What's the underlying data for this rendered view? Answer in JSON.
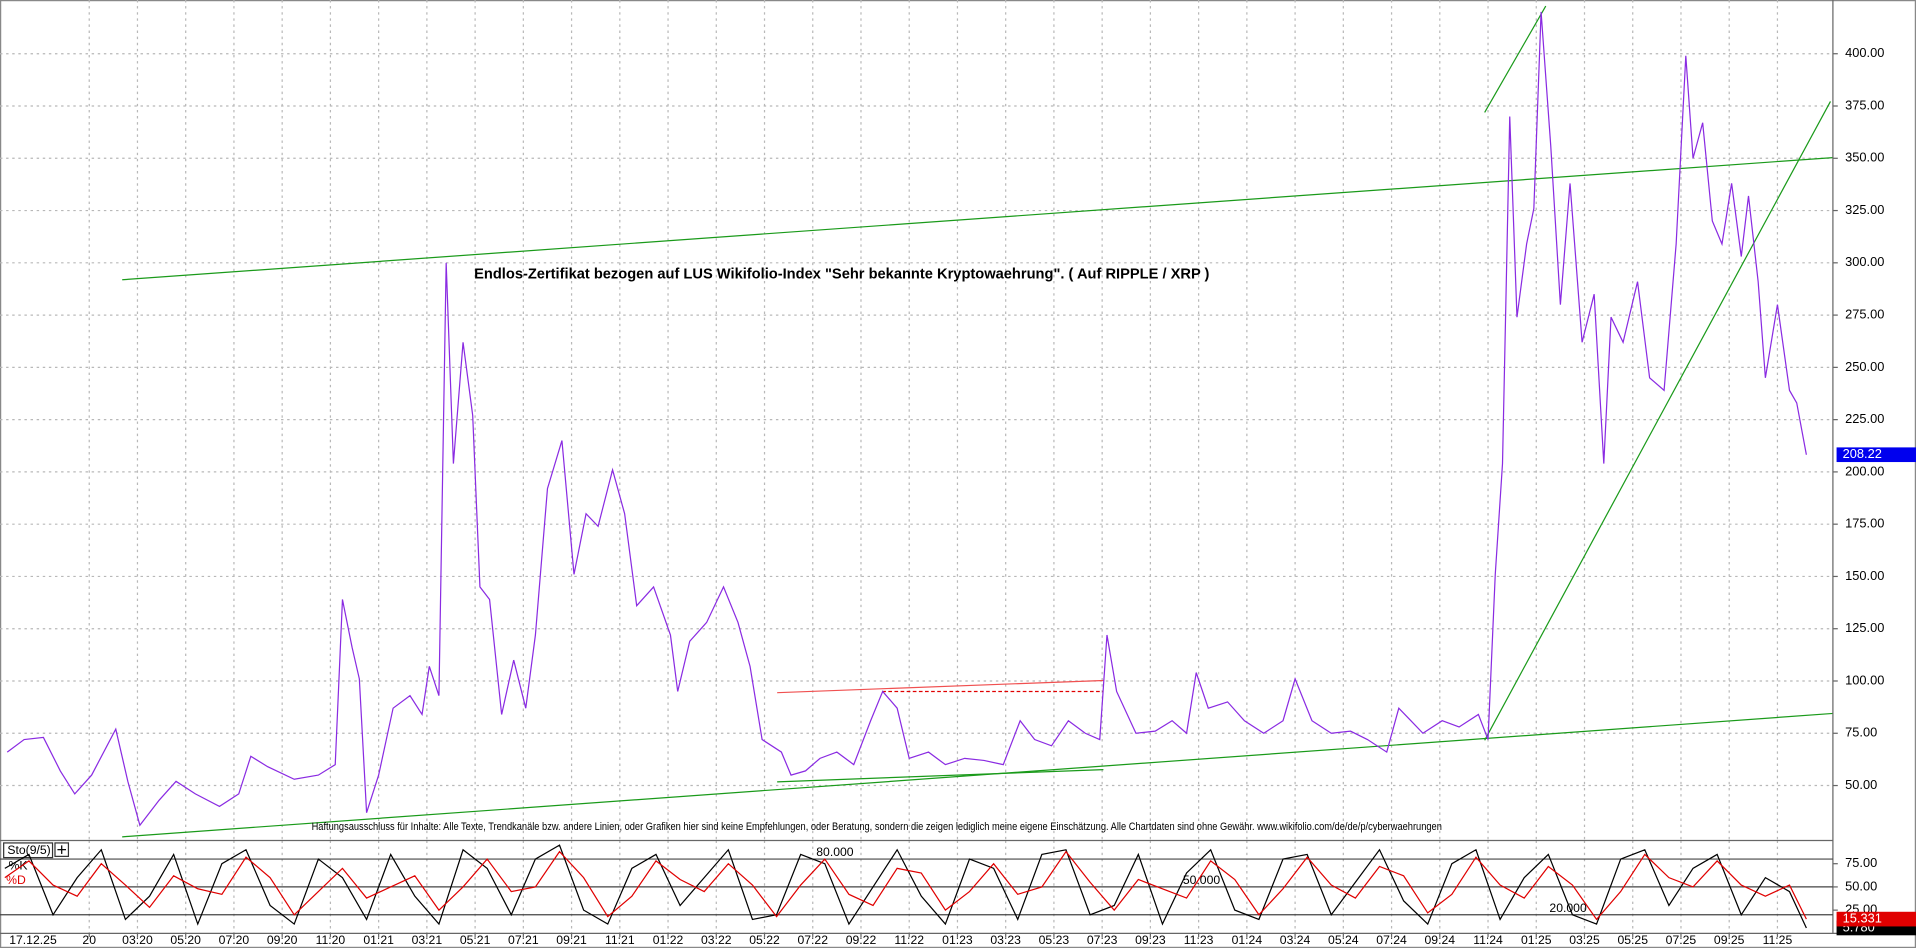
{
  "chart_data": [
    {
      "type": "line",
      "title": "Endlos-Zertifikat bezogen auf LUS Wikifolio-Index \"Sehr bekannte Kryptowaehrung\". ( Auf RIPPLE / XRP )",
      "annotation": "Haftungsausschluss für Inhalte: Alle Texte, Trendkanäle bzw. andere Linien, oder Grafiken hier sind keine Empfehlungen, oder Beratung, sondern die zeigen lediglich meine eigene Einschätzung. Alle Chartdaten sind ohne Gewähr.  www.wikifolio.com/de/de/p/cyberwaehrungen",
      "date_label": "17.12.25",
      "color": "#8a2be2",
      "grid": true,
      "x": [
        -3.4,
        -2.7,
        -1.9,
        -1.2,
        -0.6,
        0.1,
        1.1,
        1.6,
        2.1,
        2.9,
        3.6,
        4.4,
        5.4,
        6.2,
        6.7,
        7.4,
        8.5,
        9.5,
        10.2,
        10.5,
        10.9,
        11.2,
        11.5,
        12.0,
        12.6,
        13.3,
        13.8,
        14.1,
        14.5,
        14.8,
        15.1,
        15.5,
        15.9,
        16.2,
        16.6,
        17.1,
        17.6,
        18.1,
        18.5,
        19.0,
        19.6,
        20.1,
        20.6,
        21.1,
        21.7,
        22.2,
        22.7,
        23.4,
        24.1,
        24.4,
        24.9,
        25.6,
        26.3,
        26.9,
        27.4,
        27.9,
        28.7,
        29.1,
        29.7,
        30.3,
        31.0,
        31.7,
        32.4,
        32.9,
        33.5,
        34.0,
        34.8,
        35.5,
        36.3,
        37.1,
        37.9,
        38.6,
        39.2,
        39.9,
        40.6,
        41.3,
        41.9,
        42.2,
        42.6,
        43.4,
        44.2,
        44.9,
        45.5,
        45.9,
        46.4,
        47.2,
        47.9,
        48.7,
        49.5,
        50.0,
        50.7,
        51.5,
        52.3,
        53.0,
        53.8,
        54.3,
        54.8,
        55.3,
        56.1,
        56.8,
        57.6,
        58.0,
        58.3,
        58.6,
        58.9,
        59.2,
        59.6,
        59.9,
        60.2,
        60.6,
        61.0,
        61.4,
        61.9,
        62.4,
        62.8,
        63.1,
        63.6,
        64.2,
        64.7,
        65.3,
        65.8,
        66.2,
        66.5,
        66.9,
        67.3,
        67.7,
        68.1,
        68.5,
        68.8,
        69.2,
        69.5,
        70.0,
        70.5,
        70.8,
        71.2
      ],
      "values": [
        66,
        72,
        73,
        57,
        46,
        55,
        77,
        52,
        31,
        43,
        52,
        46,
        40,
        46,
        64,
        59,
        53,
        55,
        60,
        139,
        116,
        101,
        37,
        55,
        87,
        93,
        84,
        107,
        93,
        300,
        204,
        262,
        227,
        145,
        139,
        84,
        110,
        87,
        122,
        192,
        215,
        151,
        180,
        174,
        201,
        180,
        136,
        145,
        122,
        95,
        119,
        128,
        145,
        128,
        107,
        72,
        66,
        55,
        57,
        63,
        66,
        60,
        81,
        95,
        87,
        63,
        66,
        60,
        63,
        62,
        60,
        81,
        72,
        69,
        81,
        75,
        72,
        122,
        95,
        75,
        76,
        81,
        75,
        104,
        87,
        90,
        81,
        75,
        81,
        101,
        81,
        75,
        76,
        72,
        66,
        87,
        81,
        75,
        81,
        78,
        84,
        72,
        151,
        204,
        370,
        274,
        309,
        326,
        420,
        356,
        280,
        338,
        262,
        285,
        204,
        274,
        262,
        291,
        245,
        239,
        309,
        399,
        350,
        367,
        320,
        309,
        338,
        303,
        332,
        291,
        245,
        280,
        239,
        233,
        208.22
      ],
      "last_price": 208.22,
      "xlim": [
        -3.7,
        72.3
      ],
      "ylim": [
        24.3,
        425.7
      ],
      "xticks": [
        {
          "value": 0,
          "label": "20"
        },
        {
          "value": 2,
          "label": "03:20"
        },
        {
          "value": 4,
          "label": "05:20"
        },
        {
          "value": 6,
          "label": "07:20"
        },
        {
          "value": 8,
          "label": "09:20"
        },
        {
          "value": 10,
          "label": "11:20"
        },
        {
          "value": 12,
          "label": "01:21"
        },
        {
          "value": 14,
          "label": "03:21"
        },
        {
          "value": 16,
          "label": "05:21"
        },
        {
          "value": 18,
          "label": "07:21"
        },
        {
          "value": 20,
          "label": "09:21"
        },
        {
          "value": 22,
          "label": "11:21"
        },
        {
          "value": 24,
          "label": "01:22"
        },
        {
          "value": 26,
          "label": "03:22"
        },
        {
          "value": 28,
          "label": "05:22"
        },
        {
          "value": 30,
          "label": "07:22"
        },
        {
          "value": 32,
          "label": "09:22"
        },
        {
          "value": 34,
          "label": "11:22"
        },
        {
          "value": 36,
          "label": "01:23"
        },
        {
          "value": 38,
          "label": "03:23"
        },
        {
          "value": 40,
          "label": "05:23"
        },
        {
          "value": 42,
          "label": "07:23"
        },
        {
          "value": 44,
          "label": "09:23"
        },
        {
          "value": 46,
          "label": "11:23"
        },
        {
          "value": 48,
          "label": "01:24"
        },
        {
          "value": 50,
          "label": "03:24"
        },
        {
          "value": 52,
          "label": "05:24"
        },
        {
          "value": 54,
          "label": "07:24"
        },
        {
          "value": 56,
          "label": "09:24"
        },
        {
          "value": 58,
          "label": "11:24"
        },
        {
          "value": 60,
          "label": "01:25"
        },
        {
          "value": 62,
          "label": "03:25"
        },
        {
          "value": 64,
          "label": "05:25"
        },
        {
          "value": 66,
          "label": "07:25"
        },
        {
          "value": 68,
          "label": "09:25"
        },
        {
          "value": 70,
          "label": "11:25"
        }
      ],
      "yticks": [
        {
          "value": 50,
          "label": "50.00"
        },
        {
          "value": 75,
          "label": "75.00"
        },
        {
          "value": 100,
          "label": "100.00"
        },
        {
          "value": 125,
          "label": "125.00"
        },
        {
          "value": 150,
          "label": "150.00"
        },
        {
          "value": 175,
          "label": "175.00"
        },
        {
          "value": 200,
          "label": "200.00"
        },
        {
          "value": 225,
          "label": "225.00"
        },
        {
          "value": 250,
          "label": "250.00"
        },
        {
          "value": 275,
          "label": "275.00"
        },
        {
          "value": 300,
          "label": "300.00"
        },
        {
          "value": 325,
          "label": "325.00"
        },
        {
          "value": 350,
          "label": "350.00"
        },
        {
          "value": 375,
          "label": "375.00"
        },
        {
          "value": 400,
          "label": "400.00"
        }
      ]
    },
    {
      "type": "line",
      "title": "Sto(9/5)",
      "grid": true,
      "x": [
        -3.5,
        -2.5,
        -1.5,
        -0.5,
        0.5,
        1.5,
        2.5,
        3.5,
        4.5,
        5.5,
        6.5,
        7.5,
        8.5,
        9.5,
        10.5,
        11.5,
        12.5,
        13.5,
        14.5,
        15.5,
        16.5,
        17.5,
        18.5,
        19.5,
        20.5,
        21.5,
        22.5,
        23.5,
        24.5,
        25.5,
        26.5,
        27.5,
        28.5,
        29.5,
        30.5,
        31.5,
        32.5,
        33.5,
        34.5,
        35.5,
        36.5,
        37.5,
        38.5,
        39.5,
        40.5,
        41.5,
        42.5,
        43.5,
        44.5,
        45.5,
        46.5,
        47.5,
        48.5,
        49.5,
        50.5,
        51.5,
        52.5,
        53.5,
        54.5,
        55.5,
        56.5,
        57.5,
        58.5,
        59.5,
        60.5,
        61.5,
        62.5,
        63.5,
        64.5,
        65.5,
        66.5,
        67.5,
        68.5,
        69.5,
        70.5,
        71.2
      ],
      "series": [
        {
          "name": "%K",
          "color": "#000000",
          "values": [
            70,
            85,
            20,
            60,
            90,
            15,
            40,
            85,
            10,
            75,
            90,
            30,
            10,
            80,
            60,
            15,
            85,
            40,
            10,
            90,
            70,
            20,
            80,
            95,
            25,
            10,
            70,
            85,
            30,
            60,
            90,
            15,
            20,
            85,
            75,
            10,
            50,
            90,
            40,
            10,
            80,
            70,
            15,
            85,
            90,
            20,
            30,
            85,
            10,
            65,
            90,
            25,
            15,
            80,
            85,
            20,
            55,
            90,
            35,
            10,
            75,
            90,
            15,
            60,
            85,
            20,
            10,
            80,
            90,
            30,
            70,
            85,
            20,
            60,
            45,
            5.78
          ],
          "last": {
            "value": 5.78,
            "label": "5.780"
          }
        },
        {
          "name": "%D",
          "color": "#e00000",
          "values": [
            60,
            78,
            52,
            40,
            75,
            52,
            28,
            62,
            48,
            42,
            82,
            60,
            20,
            45,
            70,
            38,
            50,
            62,
            25,
            50,
            80,
            45,
            50,
            88,
            60,
            18,
            40,
            78,
            58,
            45,
            75,
            52,
            18,
            52,
            80,
            42,
            30,
            70,
            65,
            25,
            45,
            75,
            42,
            50,
            88,
            55,
            25,
            58,
            48,
            38,
            78,
            58,
            20,
            48,
            82,
            52,
            38,
            72,
            62,
            22,
            42,
            82,
            52,
            38,
            72,
            52,
            15,
            45,
            85,
            60,
            50,
            78,
            52,
            40,
            52,
            15.331
          ],
          "last": {
            "value": 15.331,
            "label": "15.331"
          }
        }
      ],
      "levels": [
        {
          "value": 80,
          "label": "80.000"
        },
        {
          "value": 50,
          "label": "50.000"
        },
        {
          "value": 20,
          "label": "20.000"
        }
      ],
      "xlim": [
        -3.7,
        72.3
      ],
      "ylim": [
        0,
        100
      ],
      "yticks": [
        {
          "value": 25,
          "label": "25.00"
        },
        {
          "value": 50,
          "label": "50.00"
        },
        {
          "value": 75,
          "label": "75.00"
        }
      ]
    }
  ]
}
